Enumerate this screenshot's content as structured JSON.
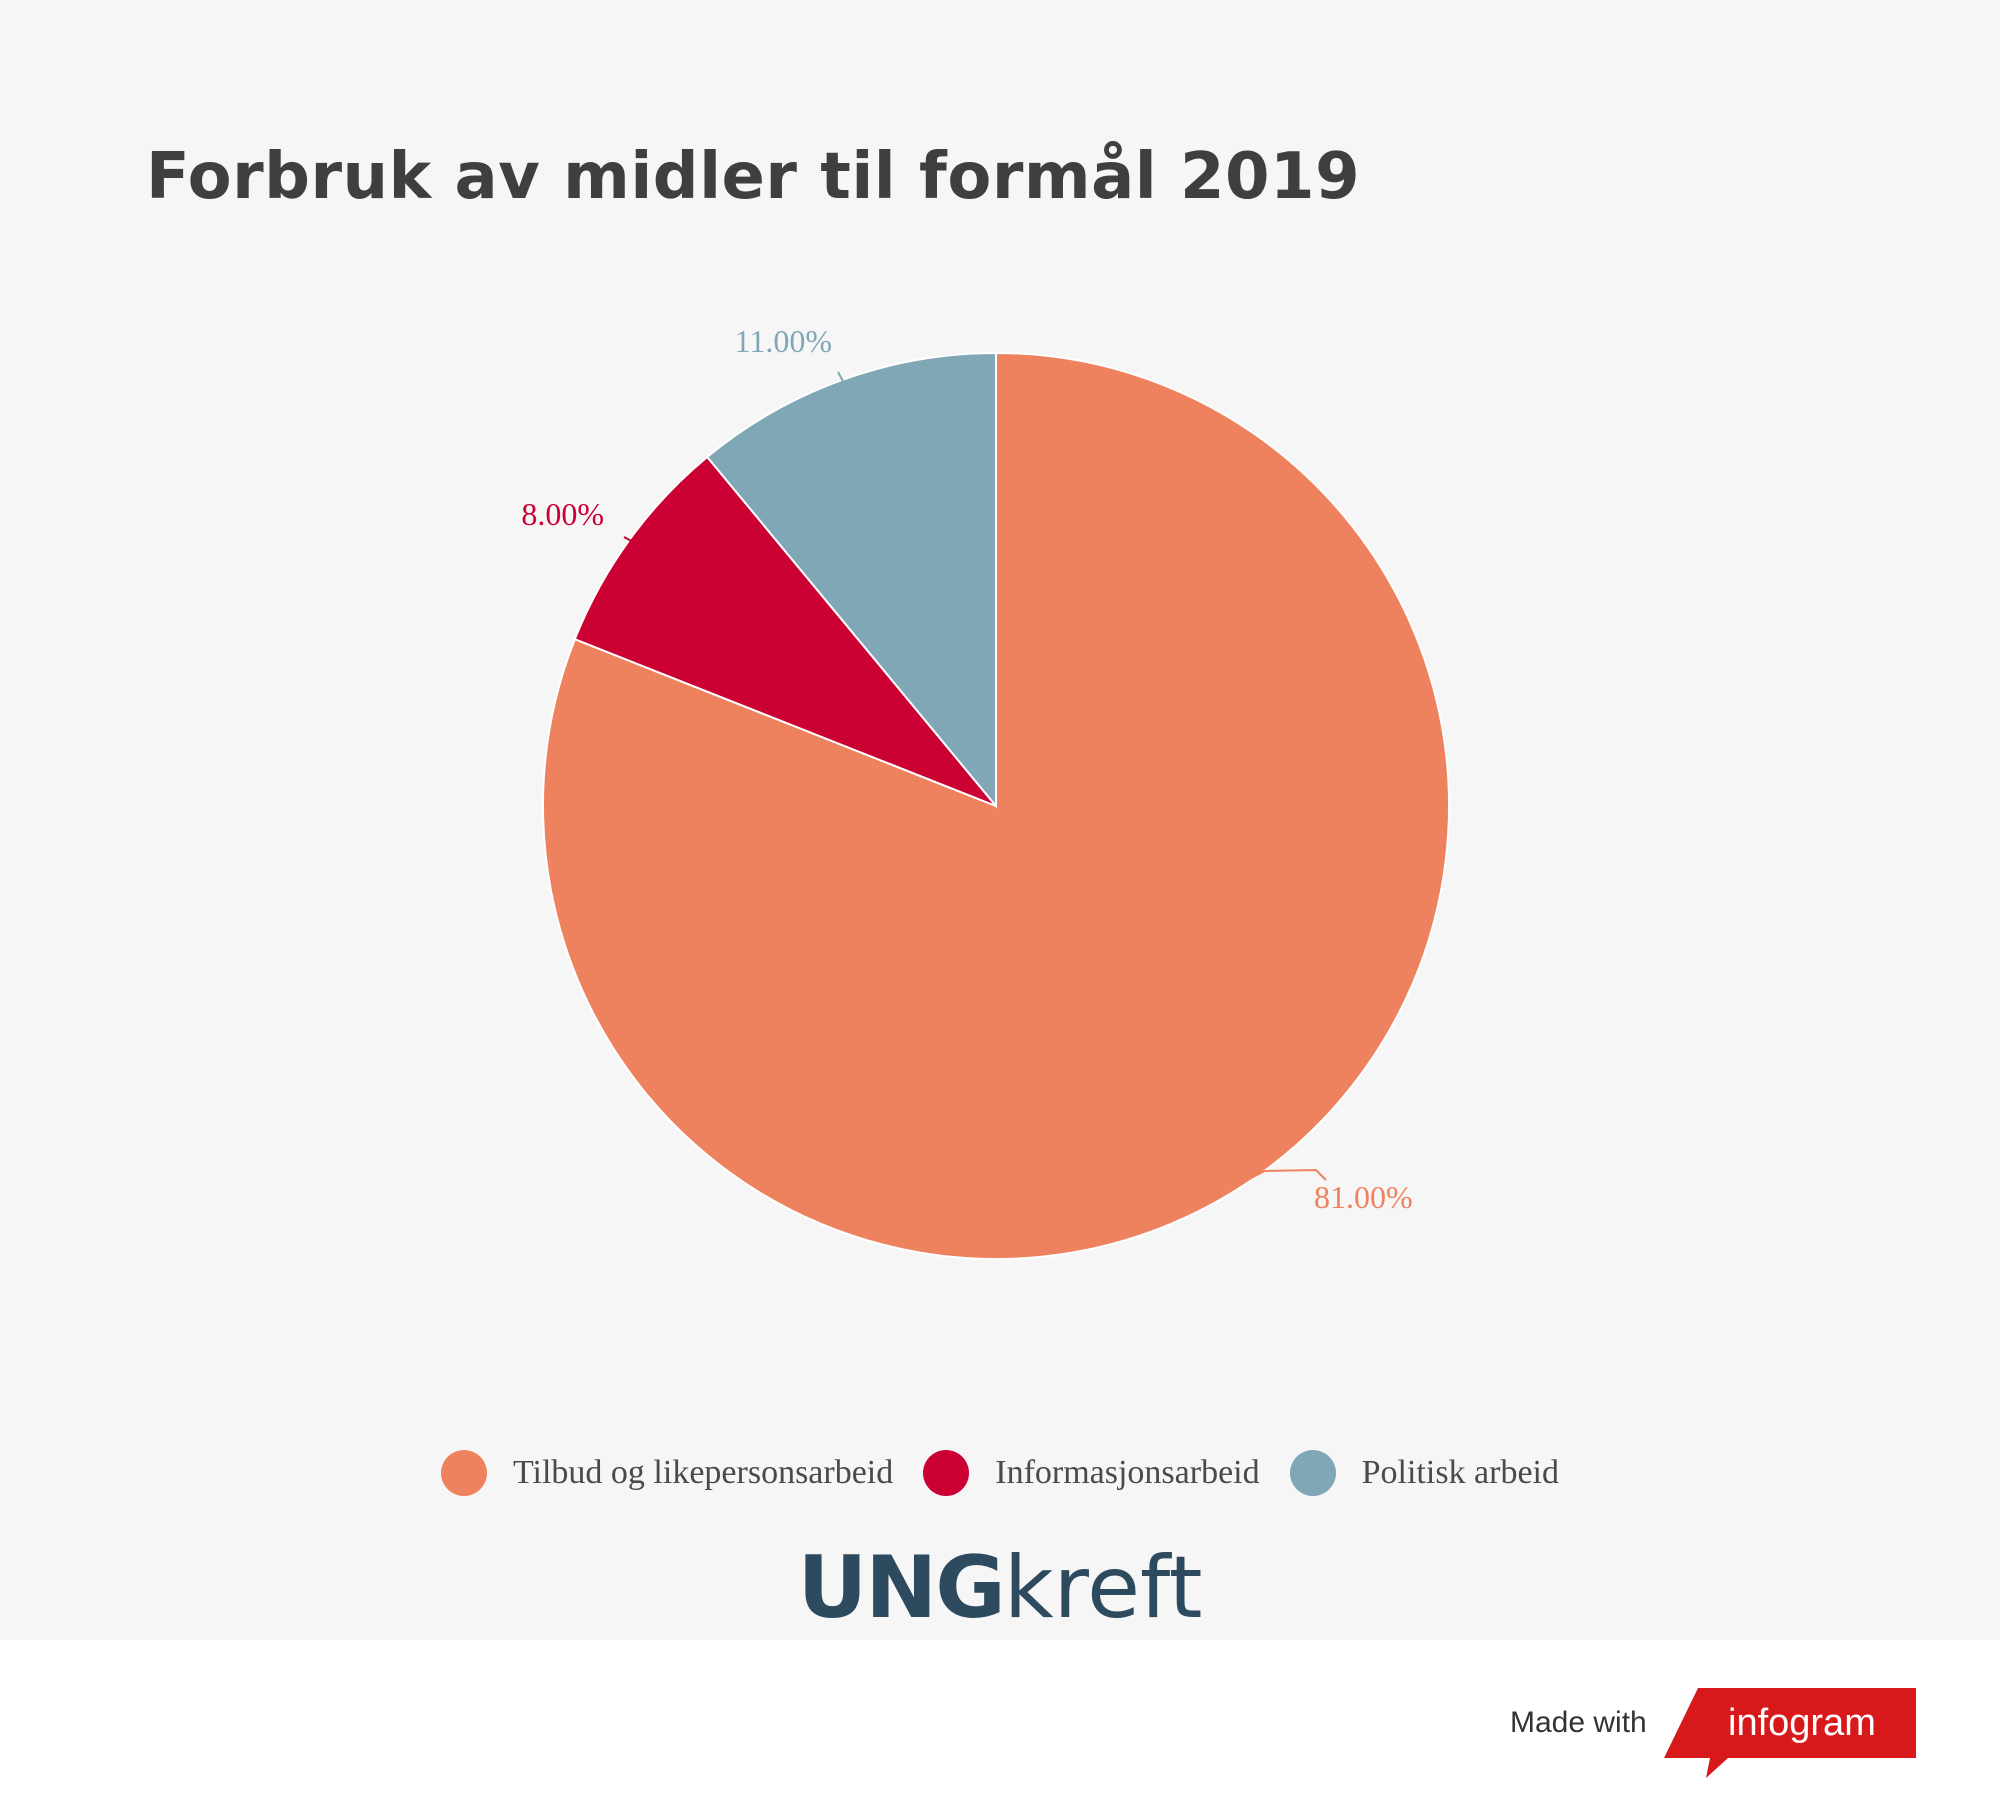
{
  "title": "Forbruk av midler til formål 2019",
  "chart_data": {
    "type": "pie",
    "title": "Forbruk av midler til formål 2019",
    "slices": [
      {
        "name": "Tilbud og likepersonsarbeid",
        "value": 81.0,
        "label": "81.00%",
        "color": "#ef825e"
      },
      {
        "name": "Informasjonsarbeid",
        "value": 8.0,
        "label": "8.00%",
        "color": "#cb0033"
      },
      {
        "name": "Politisk arbeid",
        "value": 11.0,
        "label": "11.00%",
        "color": "#80a7b6"
      }
    ],
    "start_angle": "12 o'clock, clockwise",
    "legend_position": "bottom"
  },
  "legend": [
    {
      "label": "Tilbud og likepersonsarbeid",
      "color": "#ef825e"
    },
    {
      "label": "Informasjonsarbeid",
      "color": "#cb0033"
    },
    {
      "label": "Politisk arbeid",
      "color": "#80a7b6"
    }
  ],
  "brand": {
    "strong": "UNG",
    "light": "kreft"
  },
  "footer": {
    "made_with": "Made with",
    "infogram": "infogram"
  }
}
